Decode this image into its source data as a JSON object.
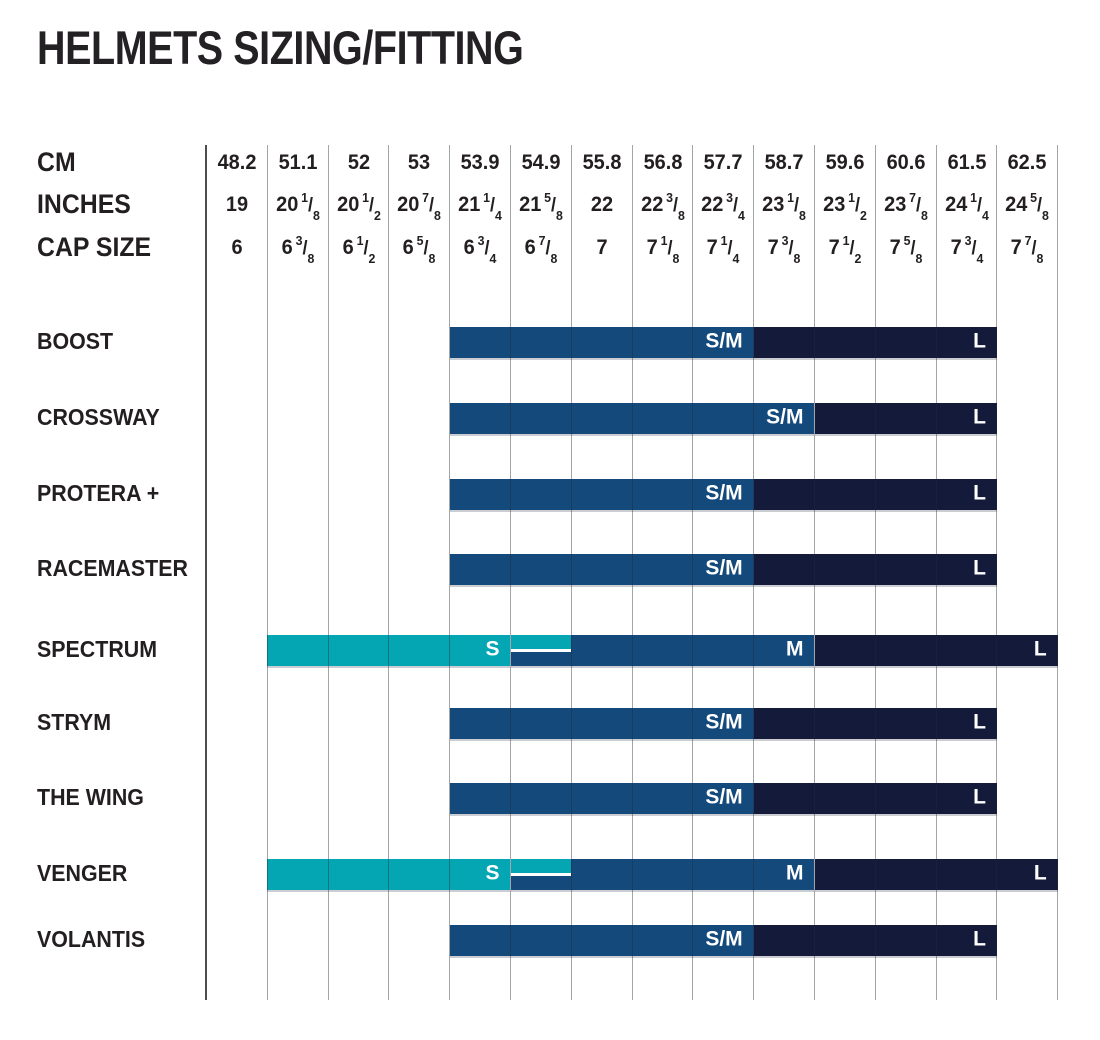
{
  "page": {
    "title": "HELMETS SIZING/FITTING"
  },
  "colors": {
    "teal": "#04a6b4",
    "blue": "#14497c",
    "navy": "#131a3a",
    "text": "#231f20",
    "grid_dark": "#4c4d4f",
    "grid_light": "#a7a8aa",
    "bar_label": "#ffffff"
  },
  "chart_data": {
    "type": "table",
    "title": "HELMETS SIZING/FITTING",
    "description": "Helmet model size ranges (S, M, S/M, L) mapped against head circumference columns",
    "header_rows": [
      {
        "label": "CM",
        "values": [
          "48.2",
          "51.1",
          "52",
          "53",
          "53.9",
          "54.9",
          "55.8",
          "56.8",
          "57.7",
          "58.7",
          "59.6",
          "60.6",
          "61.5",
          "62.5"
        ]
      },
      {
        "label": "INCHES",
        "values": [
          "19",
          "20 1/8",
          "20 1/2",
          "20 7/8",
          "21 1/4",
          "21 5/8",
          "22",
          "22 3/8",
          "22 3/4",
          "23 1/8",
          "23 1/2",
          "23 7/8",
          "24 1/4",
          "24 5/8"
        ]
      },
      {
        "label": "CAP SIZE",
        "values": [
          "6",
          "6 3/8",
          "6 1/2",
          "6 5/8",
          "6 3/4",
          "6 7/8",
          "7",
          "7 1/8",
          "7 1/4",
          "7 3/8",
          "7 1/2",
          "7 5/8",
          "7 3/4",
          "7 7/8"
        ]
      }
    ],
    "rows": [
      {
        "name": "BOOST",
        "segments": [
          {
            "size": "S/M",
            "color": "blue",
            "full": [
              5,
              9
            ]
          },
          {
            "size": "L",
            "color": "navy",
            "full": [
              10,
              13
            ]
          }
        ]
      },
      {
        "name": "CROSSWAY",
        "segments": [
          {
            "size": "S/M",
            "color": "blue",
            "full": [
              5,
              10
            ]
          },
          {
            "size": "L",
            "color": "navy",
            "full": [
              11,
              13
            ]
          }
        ]
      },
      {
        "name": "PROTERA +",
        "segments": [
          {
            "size": "S/M",
            "color": "blue",
            "full": [
              5,
              9
            ]
          },
          {
            "size": "L",
            "color": "navy",
            "full": [
              10,
              13
            ]
          }
        ]
      },
      {
        "name": "RACEMASTER",
        "segments": [
          {
            "size": "S/M",
            "color": "blue",
            "full": [
              5,
              9
            ]
          },
          {
            "size": "L",
            "color": "navy",
            "full": [
              10,
              13
            ]
          }
        ]
      },
      {
        "name": "SPECTRUM",
        "segments": [
          {
            "size": "S",
            "color": "teal",
            "full": [
              2,
              5
            ],
            "top_half": [
              6,
              6
            ]
          },
          {
            "size": "M",
            "color": "blue",
            "full": [
              7,
              10
            ],
            "bottom_half": [
              6,
              6
            ]
          },
          {
            "size": "L",
            "color": "navy",
            "full": [
              11,
              14
            ]
          }
        ]
      },
      {
        "name": "STRYM",
        "segments": [
          {
            "size": "S/M",
            "color": "blue",
            "full": [
              5,
              9
            ]
          },
          {
            "size": "L",
            "color": "navy",
            "full": [
              10,
              13
            ]
          }
        ]
      },
      {
        "name": "THE WING",
        "segments": [
          {
            "size": "S/M",
            "color": "blue",
            "full": [
              5,
              9
            ]
          },
          {
            "size": "L",
            "color": "navy",
            "full": [
              10,
              13
            ]
          }
        ]
      },
      {
        "name": "VENGER",
        "segments": [
          {
            "size": "S",
            "color": "teal",
            "full": [
              2,
              5
            ],
            "top_half": [
              6,
              6
            ]
          },
          {
            "size": "M",
            "color": "blue",
            "full": [
              7,
              10
            ],
            "bottom_half": [
              6,
              6
            ]
          },
          {
            "size": "L",
            "color": "navy",
            "full": [
              11,
              14
            ]
          }
        ]
      },
      {
        "name": "VOLANTIS",
        "segments": [
          {
            "size": "S/M",
            "color": "blue",
            "full": [
              5,
              9
            ]
          },
          {
            "size": "L",
            "color": "navy",
            "full": [
              10,
              13
            ]
          }
        ]
      }
    ]
  }
}
